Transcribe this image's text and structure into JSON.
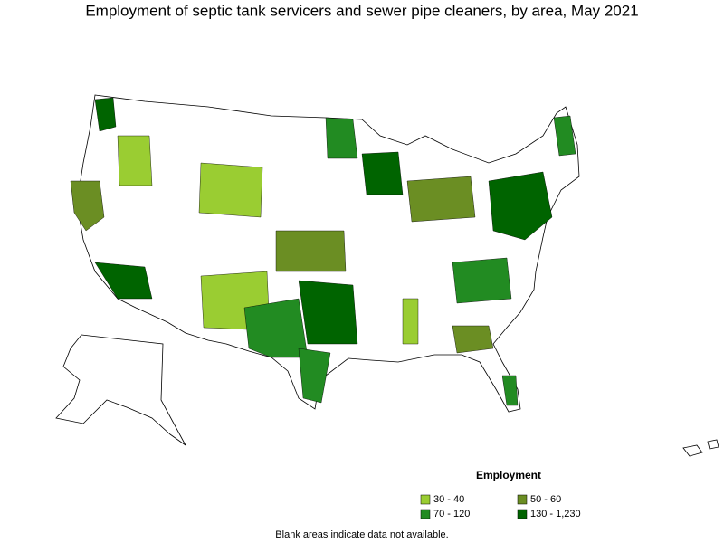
{
  "header": {
    "title": "Employment of septic tank servicers and sewer pipe cleaners, by area, May 2021"
  },
  "legend": {
    "title": "Employment",
    "items": [
      {
        "label": "30 - 40",
        "color": "#9acd32"
      },
      {
        "label": "50 - 60",
        "color": "#6b8e23"
      },
      {
        "label": "70 - 120",
        "color": "#228b22"
      },
      {
        "label": "130 - 1,230",
        "color": "#006400"
      }
    ]
  },
  "footnote": "Blank areas indicate data not available."
}
